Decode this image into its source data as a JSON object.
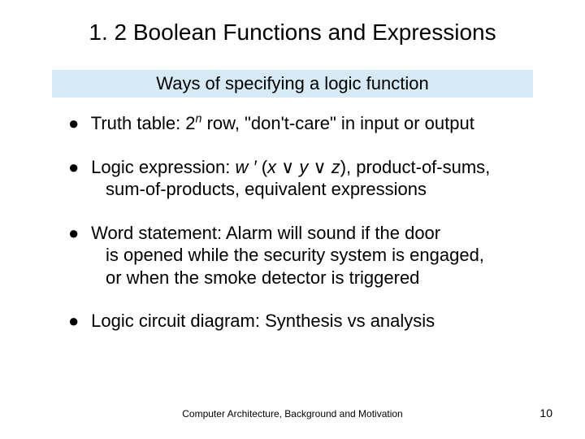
{
  "title": "1. 2  Boolean Functions and Expressions",
  "subtitle": "Ways of specifying a logic function",
  "subtitle_bg": "#d6ebf5",
  "text_color": "#000000",
  "background_color": "#ffffff",
  "bullet_glyph": "●",
  "bullets": {
    "b1_pre": " Truth table: 2",
    "b1_exp": "n",
    "b1_post": " row, \"don't-care\" in input or output",
    "b2_pre": " Logic expression: ",
    "b2_w": "w",
    "b2_sp1": " ",
    "b2_prime": "′",
    "b2_sp2": " (",
    "b2_x": "x",
    "b2_or1": " ∨ ",
    "b2_y": "y",
    "b2_or2": " ∨ ",
    "b2_z": "z",
    "b2_post": "), product-of-sums,",
    "b2_line2": "sum-of-products, equivalent expressions",
    "b3_line1": " Word statement: Alarm will sound if the door",
    "b3_line2": "is opened while the security system is engaged,",
    "b3_line3": "or when the smoke detector is triggered",
    "b4": " Logic circuit diagram: Synthesis vs analysis"
  },
  "footer": "Computer Architecture, Background and Motivation",
  "page_number": "10",
  "fonts": {
    "title_size_pt": 28,
    "subtitle_size_pt": 22,
    "body_size_pt": 22,
    "footer_size_pt": 12,
    "pagenum_size_pt": 14
  }
}
